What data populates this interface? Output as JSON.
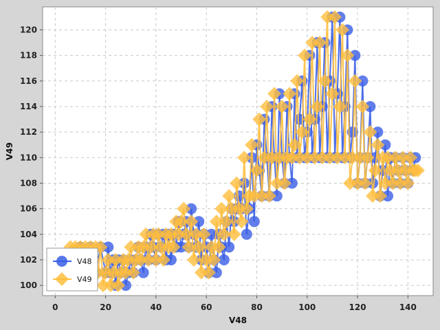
{
  "chart_data": {
    "type": "line",
    "xlabel": "V48",
    "ylabel": "V49",
    "xlim": [
      -5,
      150
    ],
    "ylim": [
      99.2,
      121.8
    ],
    "x_ticks": [
      0,
      20,
      40,
      60,
      80,
      100,
      120,
      140
    ],
    "y_ticks": [
      100,
      102,
      104,
      106,
      108,
      110,
      112,
      114,
      116,
      118,
      120
    ],
    "grid": true,
    "legend_position": "bottom-left",
    "series": [
      {
        "name": "V48",
        "color": "#3a5ee6",
        "marker": "circle",
        "points": [
          [
            10,
            103
          ],
          [
            12,
            102
          ],
          [
            14,
            103
          ],
          [
            16,
            101
          ],
          [
            18,
            103
          ],
          [
            20,
            101
          ],
          [
            21,
            103
          ],
          [
            22,
            101
          ],
          [
            23,
            102
          ],
          [
            24,
            100
          ],
          [
            25,
            102
          ],
          [
            26,
            101
          ],
          [
            27,
            102
          ],
          [
            28,
            100
          ],
          [
            29,
            101
          ],
          [
            30,
            102
          ],
          [
            31,
            101
          ],
          [
            32,
            102
          ],
          [
            33,
            103
          ],
          [
            34,
            102
          ],
          [
            35,
            101
          ],
          [
            36,
            103
          ],
          [
            37,
            102
          ],
          [
            38,
            104
          ],
          [
            39,
            103
          ],
          [
            40,
            102
          ],
          [
            41,
            104
          ],
          [
            42,
            103
          ],
          [
            43,
            104
          ],
          [
            44,
            102
          ],
          [
            45,
            104
          ],
          [
            46,
            102
          ],
          [
            47,
            104
          ],
          [
            48,
            103
          ],
          [
            49,
            105
          ],
          [
            50,
            103
          ],
          [
            51,
            104
          ],
          [
            52,
            105
          ],
          [
            53,
            103
          ],
          [
            54,
            106
          ],
          [
            55,
            104
          ],
          [
            56,
            103
          ],
          [
            57,
            105
          ],
          [
            58,
            102
          ],
          [
            59,
            104
          ],
          [
            60,
            103
          ],
          [
            61,
            101
          ],
          [
            62,
            104
          ],
          [
            63,
            102
          ],
          [
            64,
            101
          ],
          [
            65,
            104
          ],
          [
            66,
            103
          ],
          [
            67,
            102
          ],
          [
            68,
            105
          ],
          [
            69,
            103
          ],
          [
            70,
            106
          ],
          [
            71,
            105
          ],
          [
            72,
            106
          ],
          [
            73,
            107
          ],
          [
            74,
            106
          ],
          [
            75,
            108
          ],
          [
            76,
            104
          ],
          [
            77,
            106
          ],
          [
            78,
            110
          ],
          [
            79,
            105
          ],
          [
            80,
            111
          ],
          [
            81,
            109
          ],
          [
            82,
            107
          ],
          [
            83,
            113
          ],
          [
            84,
            110
          ],
          [
            85,
            107
          ],
          [
            86,
            114
          ],
          [
            87,
            110
          ],
          [
            88,
            107
          ],
          [
            89,
            115
          ],
          [
            90,
            110
          ],
          [
            91,
            108
          ],
          [
            92,
            114
          ],
          [
            93,
            110
          ],
          [
            94,
            108
          ],
          [
            95,
            115
          ],
          [
            96,
            110
          ],
          [
            97,
            113
          ],
          [
            98,
            116
          ],
          [
            99,
            110
          ],
          [
            100,
            112
          ],
          [
            101,
            118
          ],
          [
            102,
            110
          ],
          [
            103,
            113
          ],
          [
            104,
            119
          ],
          [
            105,
            110
          ],
          [
            106,
            114
          ],
          [
            107,
            119
          ],
          [
            108,
            110
          ],
          [
            109,
            116
          ],
          [
            110,
            121
          ],
          [
            111,
            110
          ],
          [
            112,
            115
          ],
          [
            113,
            121
          ],
          [
            114,
            110
          ],
          [
            115,
            114
          ],
          [
            116,
            120
          ],
          [
            117,
            110
          ],
          [
            118,
            112
          ],
          [
            119,
            118
          ],
          [
            120,
            108
          ],
          [
            121,
            110
          ],
          [
            122,
            116
          ],
          [
            123,
            108
          ],
          [
            124,
            110
          ],
          [
            125,
            114
          ],
          [
            126,
            108
          ],
          [
            127,
            110
          ],
          [
            128,
            112
          ],
          [
            129,
            107
          ],
          [
            130,
            109
          ],
          [
            131,
            111
          ],
          [
            132,
            107
          ],
          [
            133,
            110
          ],
          [
            134,
            108
          ],
          [
            135,
            110
          ],
          [
            136,
            109
          ],
          [
            137,
            108
          ],
          [
            138,
            110
          ],
          [
            139,
            109
          ],
          [
            140,
            108
          ],
          [
            141,
            110
          ],
          [
            142,
            109
          ],
          [
            143,
            110
          ]
        ]
      },
      {
        "name": "V49",
        "color": "#ffbe3d",
        "marker": "diamond",
        "points": [
          [
            6,
            103
          ],
          [
            8,
            103
          ],
          [
            10,
            103
          ],
          [
            11,
            102
          ],
          [
            12,
            103
          ],
          [
            13,
            101
          ],
          [
            14,
            103
          ],
          [
            15,
            102
          ],
          [
            16,
            103
          ],
          [
            17,
            101
          ],
          [
            18,
            103
          ],
          [
            19,
            100
          ],
          [
            20,
            101
          ],
          [
            21,
            102
          ],
          [
            22,
            100
          ],
          [
            23,
            101
          ],
          [
            24,
            102
          ],
          [
            25,
            100
          ],
          [
            26,
            101
          ],
          [
            27,
            102
          ],
          [
            28,
            101
          ],
          [
            29,
            102
          ],
          [
            30,
            103
          ],
          [
            31,
            101
          ],
          [
            32,
            102
          ],
          [
            33,
            103
          ],
          [
            34,
            102
          ],
          [
            35,
            103
          ],
          [
            36,
            104
          ],
          [
            37,
            102
          ],
          [
            38,
            103
          ],
          [
            39,
            104
          ],
          [
            40,
            102
          ],
          [
            41,
            104
          ],
          [
            42,
            103
          ],
          [
            43,
            102
          ],
          [
            44,
            104
          ],
          [
            45,
            103
          ],
          [
            46,
            104
          ],
          [
            47,
            103
          ],
          [
            48,
            105
          ],
          [
            49,
            104
          ],
          [
            50,
            105
          ],
          [
            51,
            106
          ],
          [
            52,
            104
          ],
          [
            53,
            103
          ],
          [
            54,
            105
          ],
          [
            55,
            102
          ],
          [
            56,
            104
          ],
          [
            57,
            103
          ],
          [
            58,
            101
          ],
          [
            59,
            104
          ],
          [
            60,
            102
          ],
          [
            61,
            101
          ],
          [
            62,
            103
          ],
          [
            63,
            102
          ],
          [
            64,
            105
          ],
          [
            65,
            103
          ],
          [
            66,
            106
          ],
          [
            67,
            104
          ],
          [
            68,
            105
          ],
          [
            69,
            107
          ],
          [
            70,
            106
          ],
          [
            71,
            104
          ],
          [
            72,
            108
          ],
          [
            73,
            106
          ],
          [
            74,
            105
          ],
          [
            75,
            110
          ],
          [
            76,
            106
          ],
          [
            77,
            107
          ],
          [
            78,
            111
          ],
          [
            79,
            107
          ],
          [
            80,
            109
          ],
          [
            81,
            113
          ],
          [
            82,
            107
          ],
          [
            83,
            110
          ],
          [
            84,
            114
          ],
          [
            85,
            107
          ],
          [
            86,
            110
          ],
          [
            87,
            115
          ],
          [
            88,
            108
          ],
          [
            89,
            110
          ],
          [
            90,
            114
          ],
          [
            91,
            108
          ],
          [
            92,
            110
          ],
          [
            93,
            115
          ],
          [
            94,
            110
          ],
          [
            95,
            111
          ],
          [
            96,
            116
          ],
          [
            97,
            110
          ],
          [
            98,
            112
          ],
          [
            99,
            118
          ],
          [
            100,
            110
          ],
          [
            101,
            113
          ],
          [
            102,
            119
          ],
          [
            103,
            110
          ],
          [
            104,
            114
          ],
          [
            105,
            119
          ],
          [
            106,
            110
          ],
          [
            107,
            116
          ],
          [
            108,
            121
          ],
          [
            109,
            110
          ],
          [
            110,
            115
          ],
          [
            111,
            121
          ],
          [
            112,
            110
          ],
          [
            113,
            114
          ],
          [
            114,
            120
          ],
          [
            115,
            110
          ],
          [
            116,
            118
          ],
          [
            117,
            108
          ],
          [
            118,
            110
          ],
          [
            119,
            116
          ],
          [
            120,
            108
          ],
          [
            121,
            110
          ],
          [
            122,
            114
          ],
          [
            123,
            108
          ],
          [
            124,
            110
          ],
          [
            125,
            112
          ],
          [
            126,
            107
          ],
          [
            127,
            109
          ],
          [
            128,
            111
          ],
          [
            129,
            107
          ],
          [
            130,
            110
          ],
          [
            131,
            108
          ],
          [
            132,
            110
          ],
          [
            133,
            109
          ],
          [
            134,
            108
          ],
          [
            135,
            110
          ],
          [
            136,
            109
          ],
          [
            137,
            108
          ],
          [
            138,
            110
          ],
          [
            139,
            109
          ],
          [
            140,
            108
          ],
          [
            141,
            110
          ],
          [
            142,
            109
          ],
          [
            143,
            109
          ],
          [
            144,
            109
          ]
        ]
      }
    ]
  }
}
